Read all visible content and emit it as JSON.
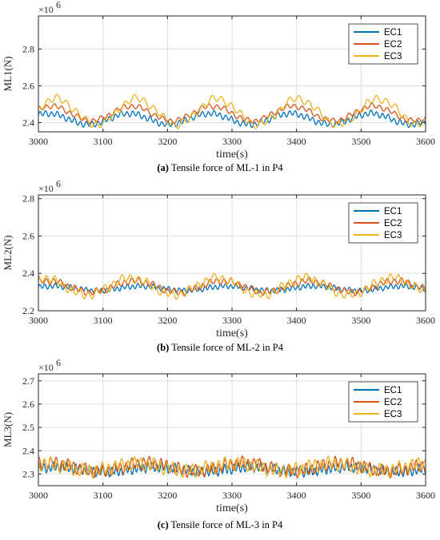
{
  "colors": {
    "EC1": "#0072BD",
    "EC2": "#D95319",
    "EC3": "#EDB120"
  },
  "chart_data": [
    {
      "type": "line",
      "ylabel": "ML1(N)",
      "xlabel": "time(s)",
      "y_exponent": "×10",
      "y_exponent_power": "6",
      "caption_letter": "(a)",
      "caption_text": " Tensile force of ML-1 in P4",
      "xlim": [
        3000,
        3600
      ],
      "ylim": [
        2.35,
        2.98
      ],
      "xticks": [
        3000,
        3100,
        3200,
        3300,
        3400,
        3500,
        3600
      ],
      "yticks": [
        2.4,
        2.6,
        2.8
      ],
      "ytick_labels": [
        "2.4",
        "2.6",
        "2.8"
      ],
      "legend_position": "top-right",
      "grid": true,
      "series": [
        {
          "name": "EC1",
          "base": 2.42,
          "slow_amp": 0.03,
          "slow_period": 125,
          "slow_phase": 0.8,
          "fast_amp": 0.014,
          "fast_period": 9,
          "fast_phase": 0.0
        },
        {
          "name": "EC2",
          "base": 2.45,
          "slow_amp": 0.04,
          "slow_period": 125,
          "slow_phase": 0.6,
          "fast_amp": 0.012,
          "fast_period": 12,
          "fast_phase": 1.2
        },
        {
          "name": "EC3",
          "base": 2.46,
          "slow_amp": 0.07,
          "slow_period": 125,
          "slow_phase": 0.2,
          "fast_amp": 0.018,
          "fast_period": 15,
          "fast_phase": 2.0
        }
      ]
    },
    {
      "type": "line",
      "ylabel": "ML2(N)",
      "xlabel": "time(s)",
      "y_exponent": "×10",
      "y_exponent_power": "6",
      "caption_letter": "(b)",
      "caption_text": " Tensile force of ML-2 in P4",
      "xlim": [
        3000,
        3600
      ],
      "ylim": [
        2.2,
        2.82
      ],
      "xticks": [
        3000,
        3100,
        3200,
        3300,
        3400,
        3500,
        3600
      ],
      "yticks": [
        2.2,
        2.4,
        2.6,
        2.8
      ],
      "ytick_labels": [
        "2.2",
        "2.4",
        "2.6",
        "2.8"
      ],
      "legend_position": "top-right",
      "grid": true,
      "series": [
        {
          "name": "EC1",
          "base": 2.32,
          "slow_amp": 0.012,
          "slow_period": 135,
          "slow_phase": 0.5,
          "fast_amp": 0.012,
          "fast_period": 8,
          "fast_phase": 0.0
        },
        {
          "name": "EC2",
          "base": 2.33,
          "slow_amp": 0.03,
          "slow_period": 135,
          "slow_phase": 0.9,
          "fast_amp": 0.015,
          "fast_period": 11,
          "fast_phase": 0.7
        },
        {
          "name": "EC3",
          "base": 2.33,
          "slow_amp": 0.045,
          "slow_period": 135,
          "slow_phase": 1.2,
          "fast_amp": 0.02,
          "fast_period": 13,
          "fast_phase": 1.9
        }
      ]
    },
    {
      "type": "line",
      "ylabel": "ML3(N)",
      "xlabel": "time(s)",
      "y_exponent": "×10",
      "y_exponent_power": "6",
      "caption_letter": "(c)",
      "caption_text": " Tensile force of ML-3 in P4",
      "xlim": [
        3000,
        3600
      ],
      "ylim": [
        2.25,
        2.73
      ],
      "xticks": [
        3000,
        3100,
        3200,
        3300,
        3400,
        3500,
        3600
      ],
      "yticks": [
        2.3,
        2.4,
        2.5,
        2.6,
        2.7
      ],
      "ytick_labels": [
        "2.3",
        "2.4",
        "2.5",
        "2.6",
        "2.7"
      ],
      "legend_position": "top-right",
      "grid": true,
      "series": [
        {
          "name": "EC1",
          "base": 2.32,
          "slow_amp": 0.01,
          "slow_period": 150,
          "slow_phase": 0.3,
          "fast_amp": 0.018,
          "fast_period": 7,
          "fast_phase": 0.0
        },
        {
          "name": "EC2",
          "base": 2.33,
          "slow_amp": 0.018,
          "slow_period": 150,
          "slow_phase": 0.8,
          "fast_amp": 0.022,
          "fast_period": 9,
          "fast_phase": 1.0
        },
        {
          "name": "EC3",
          "base": 2.33,
          "slow_amp": 0.015,
          "slow_period": 150,
          "slow_phase": 1.4,
          "fast_amp": 0.024,
          "fast_period": 10,
          "fast_phase": 2.2
        }
      ]
    }
  ]
}
